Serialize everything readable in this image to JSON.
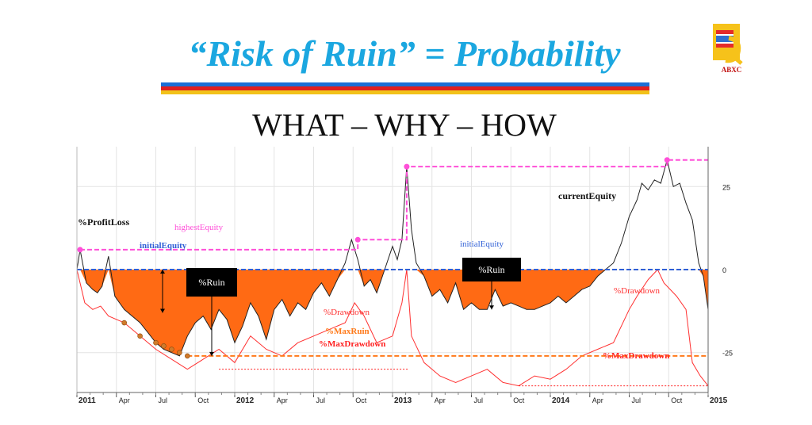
{
  "slide": {
    "title": "“Risk of Ruin” = Probability",
    "subtitle": "WHAT – WHY – HOW",
    "logo_text": "ABXC"
  },
  "colors": {
    "title": "#1ba7e0",
    "fill": "#ff6a14",
    "equity_line": "#222222",
    "drawdown_line": "#ff3030",
    "highest_equity": "#ff4fd8",
    "initial_equity": "#2f5fd6",
    "max_ruin": "#ff7a1a",
    "max_drawdown": "#ff2020"
  },
  "chart_data": {
    "type": "line",
    "ylim": [
      -37,
      37
    ],
    "y_ticks": [
      25,
      0,
      -25
    ],
    "y_tick_labels": [
      "25",
      "0",
      "-25"
    ],
    "x_tick_labels": [
      "2011",
      "Apr",
      "Jul",
      "Oct",
      "2012",
      "Apr",
      "Jul",
      "Oct",
      "2013",
      "Apr",
      "Jul",
      "Oct",
      "2014",
      "Apr",
      "Jul",
      "Oct",
      "2015"
    ],
    "grid": true,
    "annotations": {
      "profit_loss": "%ProfitLoss",
      "highest_equity": "highestEquity",
      "initial_equity_left": "initialEquity",
      "initial_equity_right": "initialEquity",
      "current_equity": "currentEquity",
      "ruin_left": "%Ruin",
      "ruin_right": "%Ruin",
      "drawdown_left": "%Drawdown",
      "drawdown_right": "%Drawdown",
      "max_ruin": "%MaxRuin",
      "max_drawdown_left": "%MaxDrawdown",
      "max_drawdown_right": "%MaxDrawdown"
    },
    "levels": {
      "initial_equity": 0,
      "max_ruin": -26,
      "highest_equity_steps": [
        6,
        9,
        31,
        33
      ]
    },
    "series": [
      {
        "name": "currentEquity",
        "x": [
          2011.0,
          2011.02,
          2011.06,
          2011.1,
          2011.13,
          2011.16,
          2011.2,
          2011.24,
          2011.27,
          2011.3,
          2011.35,
          2011.4,
          2011.45,
          2011.5,
          2011.55,
          2011.6,
          2011.65,
          2011.7,
          2011.75,
          2011.8,
          2011.85,
          2011.9,
          2011.95,
          2012.0,
          2012.05,
          2012.1,
          2012.15,
          2012.2,
          2012.25,
          2012.3,
          2012.35,
          2012.4,
          2012.45,
          2012.5,
          2012.55,
          2012.6,
          2012.65,
          2012.7,
          2012.74,
          2012.78,
          2012.82,
          2012.86,
          2012.9,
          2012.95,
          2013.0,
          2013.03,
          2013.06,
          2013.09,
          2013.12,
          2013.15,
          2013.2,
          2013.25,
          2013.3,
          2013.35,
          2013.4,
          2013.45,
          2013.5,
          2013.55,
          2013.6,
          2013.65,
          2013.7,
          2013.75,
          2013.8,
          2013.85,
          2013.9,
          2013.95,
          2014.0,
          2014.05,
          2014.1,
          2014.15,
          2014.2,
          2014.25,
          2014.3,
          2014.35,
          2014.4,
          2014.45,
          2014.5,
          2014.55,
          2014.58,
          2014.62,
          2014.66,
          2014.7,
          2014.74,
          2014.78,
          2014.82,
          2014.86,
          2014.9,
          2014.94,
          2014.97,
          2015.0
        ],
        "values": [
          0,
          6,
          -4,
          -6,
          -7,
          -5,
          4,
          -8,
          -10,
          -12,
          -14,
          -16,
          -19,
          -22,
          -24,
          -25,
          -26,
          -20,
          -16,
          -14,
          -18,
          -12,
          -15,
          -22,
          -17,
          -10,
          -14,
          -21,
          -12,
          -9,
          -14,
          -10,
          -12,
          -7,
          -4,
          -8,
          -3,
          2,
          9,
          3,
          -5,
          -3,
          -7,
          0,
          7,
          3,
          9,
          31,
          12,
          2,
          -2,
          -8,
          -6,
          -10,
          -4,
          -12,
          -10,
          -12,
          -12,
          -6,
          -11,
          -10,
          -11,
          -12,
          -12,
          -11,
          -10,
          -8,
          -10,
          -8,
          -6,
          -5,
          -2,
          0,
          2,
          8,
          16,
          21,
          26,
          24,
          27,
          26,
          33,
          25,
          26,
          20,
          15,
          2,
          -2,
          -12
        ]
      },
      {
        "name": "%Drawdown",
        "x": [
          2011.0,
          2011.05,
          2011.1,
          2011.15,
          2011.2,
          2011.3,
          2011.4,
          2011.5,
          2011.6,
          2011.7,
          2011.8,
          2011.9,
          2012.0,
          2012.1,
          2012.2,
          2012.3,
          2012.4,
          2012.5,
          2012.6,
          2012.7,
          2012.76,
          2012.82,
          2012.9,
          2013.0,
          2013.06,
          2013.09,
          2013.12,
          2013.2,
          2013.3,
          2013.4,
          2013.5,
          2013.6,
          2013.7,
          2013.8,
          2013.9,
          2014.0,
          2014.1,
          2014.2,
          2014.3,
          2014.4,
          2014.5,
          2014.55,
          2014.62,
          2014.68,
          2014.72,
          2014.8,
          2014.86,
          2014.9,
          2014.95,
          2015.0
        ],
        "values": [
          0,
          -10,
          -12,
          -11,
          -14,
          -16,
          -20,
          -24,
          -27,
          -30,
          -27,
          -24,
          -28,
          -20,
          -24,
          -26,
          -22,
          -20,
          -18,
          -16,
          -10,
          -14,
          -22,
          -20,
          -10,
          0,
          -20,
          -28,
          -32,
          -34,
          -32,
          -30,
          -34,
          -35,
          -32,
          -33,
          -30,
          -26,
          -24,
          -22,
          -12,
          -8,
          -3,
          0,
          -4,
          -8,
          -12,
          -28,
          -32,
          -35
        ]
      }
    ]
  }
}
